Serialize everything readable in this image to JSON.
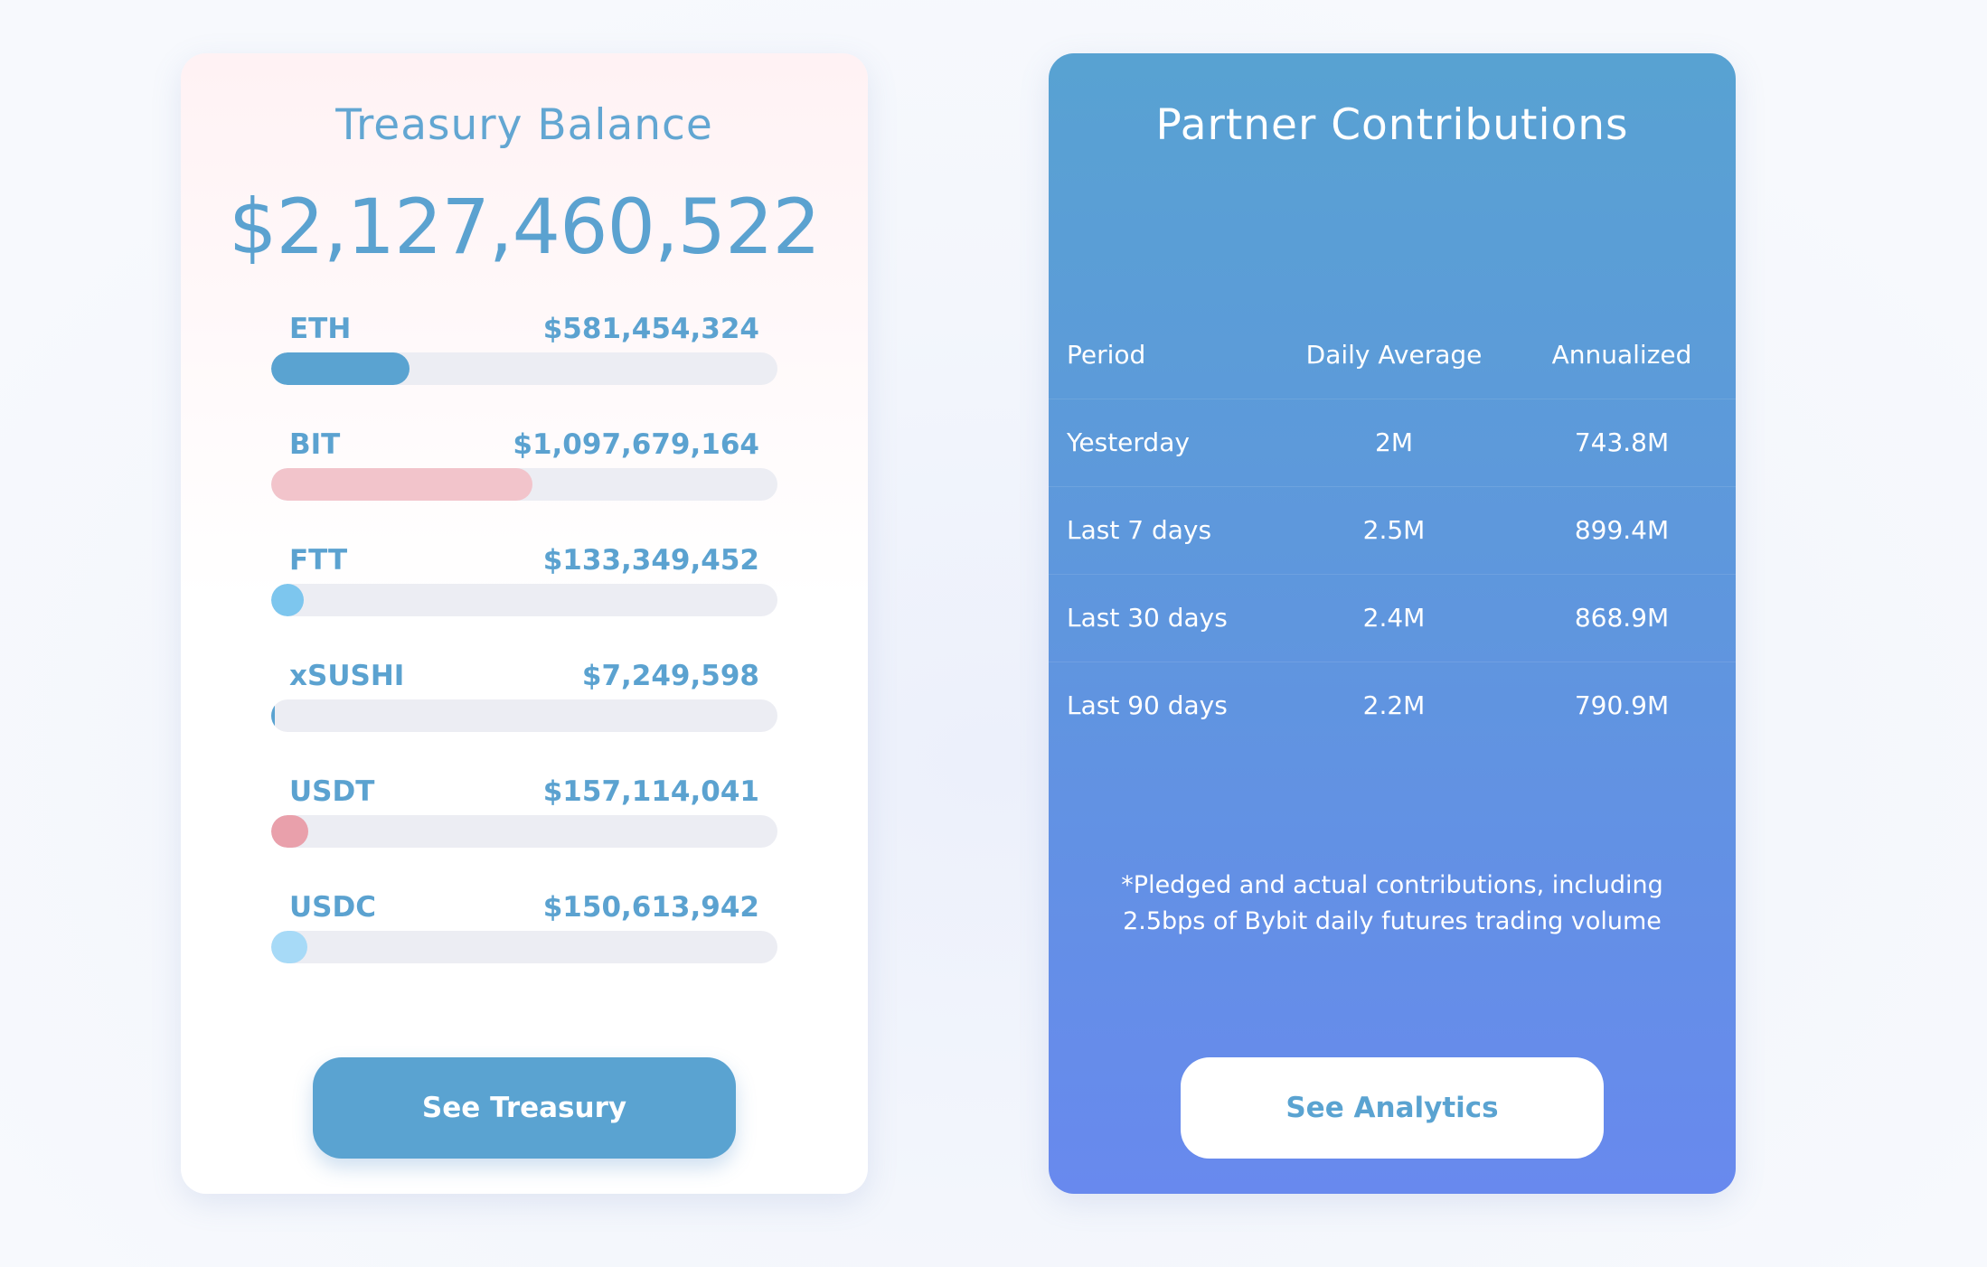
{
  "treasury": {
    "title": "Treasury Balance",
    "total": "$2,127,460,522",
    "assets": [
      {
        "name": "ETH",
        "value": "$581,454,324",
        "share": 0.273,
        "color": "#5aa3d1"
      },
      {
        "name": "BIT",
        "value": "$1,097,679,164",
        "share": 0.516,
        "color": "#f2c4cb"
      },
      {
        "name": "FTT",
        "value": "$133,349,452",
        "share": 0.063,
        "color": "#7dc6ee"
      },
      {
        "name": "xSUSHI",
        "value": "$7,249,598",
        "share": 0.003,
        "color": "#5aa3d1"
      },
      {
        "name": "USDT",
        "value": "$157,114,041",
        "share": 0.074,
        "color": "#e9a0ab"
      },
      {
        "name": "USDC",
        "value": "$150,613,942",
        "share": 0.071,
        "color": "#a7daf7"
      }
    ],
    "button_label": "See Treasury"
  },
  "partner": {
    "title": "Partner Contributions",
    "columns": [
      "Period",
      "Daily Average",
      "Annualized"
    ],
    "rows": [
      [
        "Yesterday",
        "2M",
        "743.8M"
      ],
      [
        "Last 7 days",
        "2.5M",
        "899.4M"
      ],
      [
        "Last 30 days",
        "2.4M",
        "868.9M"
      ],
      [
        "Last 90 days",
        "2.2M",
        "790.9M"
      ]
    ],
    "footnote_line1": "*Pledged and actual contributions, including",
    "footnote_line2": "2.5bps of Bybit daily futures trading volume",
    "button_label": "See Analytics"
  }
}
